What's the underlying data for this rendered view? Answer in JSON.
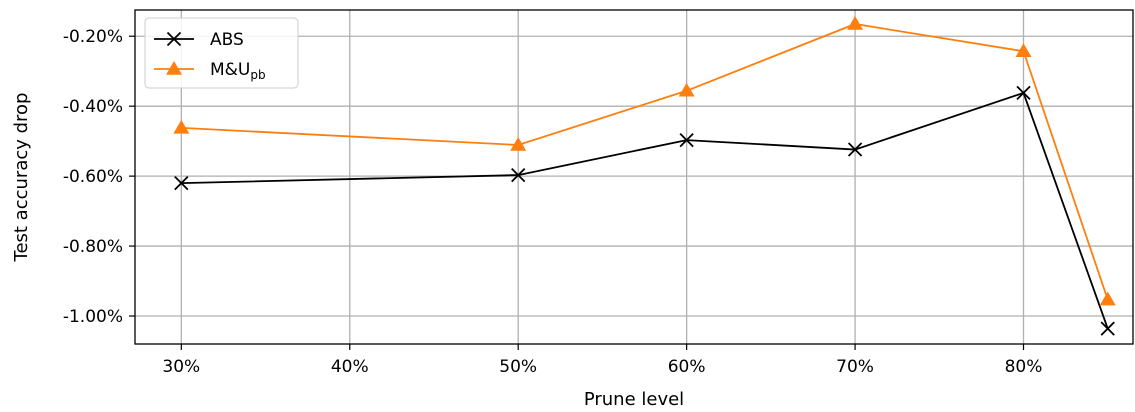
{
  "chart_data": {
    "type": "line",
    "xlabel": "Prune level",
    "ylabel": "Test accuracy drop",
    "x_ticks": [
      {
        "value": 30,
        "label": "30%"
      },
      {
        "value": 40,
        "label": "40%"
      },
      {
        "value": 50,
        "label": "50%"
      },
      {
        "value": 60,
        "label": "60%"
      },
      {
        "value": 70,
        "label": "70%"
      },
      {
        "value": 80,
        "label": "80%"
      }
    ],
    "y_ticks": [
      {
        "value": -0.2,
        "label": "-0.20%"
      },
      {
        "value": -0.4,
        "label": "-0.40%"
      },
      {
        "value": -0.6,
        "label": "-0.60%"
      },
      {
        "value": -0.8,
        "label": "-0.80%"
      },
      {
        "value": -1.0,
        "label": "-1.00%"
      }
    ],
    "xlim": [
      27.25,
      86.5
    ],
    "ylim": [
      -1.08,
      -0.125
    ],
    "grid": true,
    "legend_position": "top-left",
    "series": [
      {
        "name": "ABS",
        "name_sub": "",
        "color": "#000000",
        "marker": "x",
        "x": [
          30,
          50,
          60,
          70,
          80,
          85
        ],
        "y": [
          -0.62,
          -0.597,
          -0.497,
          -0.524,
          -0.362,
          -1.036
        ]
      },
      {
        "name": "M&U",
        "name_sub": "pb",
        "color": "#ff7f0e",
        "marker": "triangle",
        "x": [
          30,
          50,
          60,
          70,
          80,
          85
        ],
        "y": [
          -0.462,
          -0.511,
          -0.356,
          -0.165,
          -0.243,
          -0.953
        ]
      }
    ]
  }
}
